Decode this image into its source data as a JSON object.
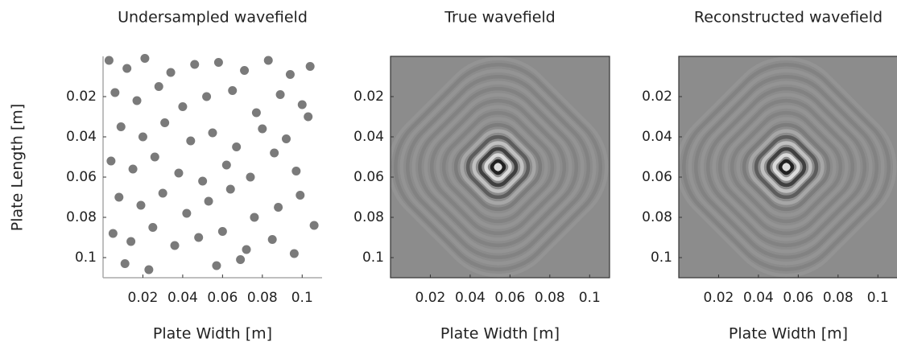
{
  "chart_data": [
    {
      "type": "scatter",
      "title": "Undersampled wavefield",
      "xlabel": "Plate Width [m]",
      "ylabel": "Plate Length [m]",
      "color": "#7a7a7a",
      "x": [
        0.003,
        0.012,
        0.021,
        0.034,
        0.046,
        0.058,
        0.071,
        0.083,
        0.094,
        0.104,
        0.006,
        0.017,
        0.028,
        0.04,
        0.052,
        0.065,
        0.077,
        0.089,
        0.1,
        0.009,
        0.02,
        0.031,
        0.044,
        0.055,
        0.067,
        0.08,
        0.092,
        0.103,
        0.004,
        0.015,
        0.026,
        0.038,
        0.05,
        0.062,
        0.074,
        0.086,
        0.097,
        0.008,
        0.019,
        0.03,
        0.042,
        0.053,
        0.064,
        0.076,
        0.088,
        0.099,
        0.005,
        0.014,
        0.025,
        0.036,
        0.048,
        0.06,
        0.072,
        0.085,
        0.096,
        0.106,
        0.011,
        0.023,
        0.057,
        0.069
      ],
      "y": [
        0.002,
        0.006,
        0.001,
        0.008,
        0.004,
        0.003,
        0.007,
        0.002,
        0.009,
        0.005,
        0.018,
        0.022,
        0.015,
        0.025,
        0.02,
        0.017,
        0.028,
        0.019,
        0.024,
        0.035,
        0.04,
        0.033,
        0.042,
        0.038,
        0.045,
        0.036,
        0.041,
        0.03,
        0.052,
        0.056,
        0.05,
        0.058,
        0.062,
        0.054,
        0.06,
        0.048,
        0.057,
        0.07,
        0.074,
        0.068,
        0.078,
        0.072,
        0.066,
        0.08,
        0.075,
        0.069,
        0.088,
        0.092,
        0.085,
        0.094,
        0.09,
        0.087,
        0.096,
        0.091,
        0.098,
        0.084,
        0.103,
        0.106,
        0.104,
        0.101
      ],
      "xlim": [
        0,
        0.11
      ],
      "ylim": [
        0,
        0.11
      ],
      "y_reversed": true,
      "xticks": [
        0.02,
        0.04,
        0.06,
        0.08,
        0.1
      ],
      "yticks": [
        0.02,
        0.04,
        0.06,
        0.08,
        0.1
      ]
    },
    {
      "type": "image",
      "title": "True wavefield",
      "xlabel": "Plate Width [m]",
      "xlim": [
        0,
        0.11
      ],
      "ylim": [
        0,
        0.11
      ],
      "y_reversed": true,
      "xticks": [
        0.02,
        0.04,
        0.06,
        0.08,
        0.1
      ],
      "yticks": [
        0.02,
        0.04,
        0.06,
        0.08,
        0.1
      ]
    },
    {
      "type": "image",
      "title": "Reconstructed wavefield",
      "xlabel": "Plate Width [m]",
      "xlim": [
        0,
        0.11
      ],
      "ylim": [
        0,
        0.11
      ],
      "y_reversed": true,
      "xticks": [
        0.02,
        0.04,
        0.06,
        0.08,
        0.1
      ],
      "yticks": [
        0.02,
        0.04,
        0.06,
        0.08,
        0.1
      ]
    }
  ]
}
